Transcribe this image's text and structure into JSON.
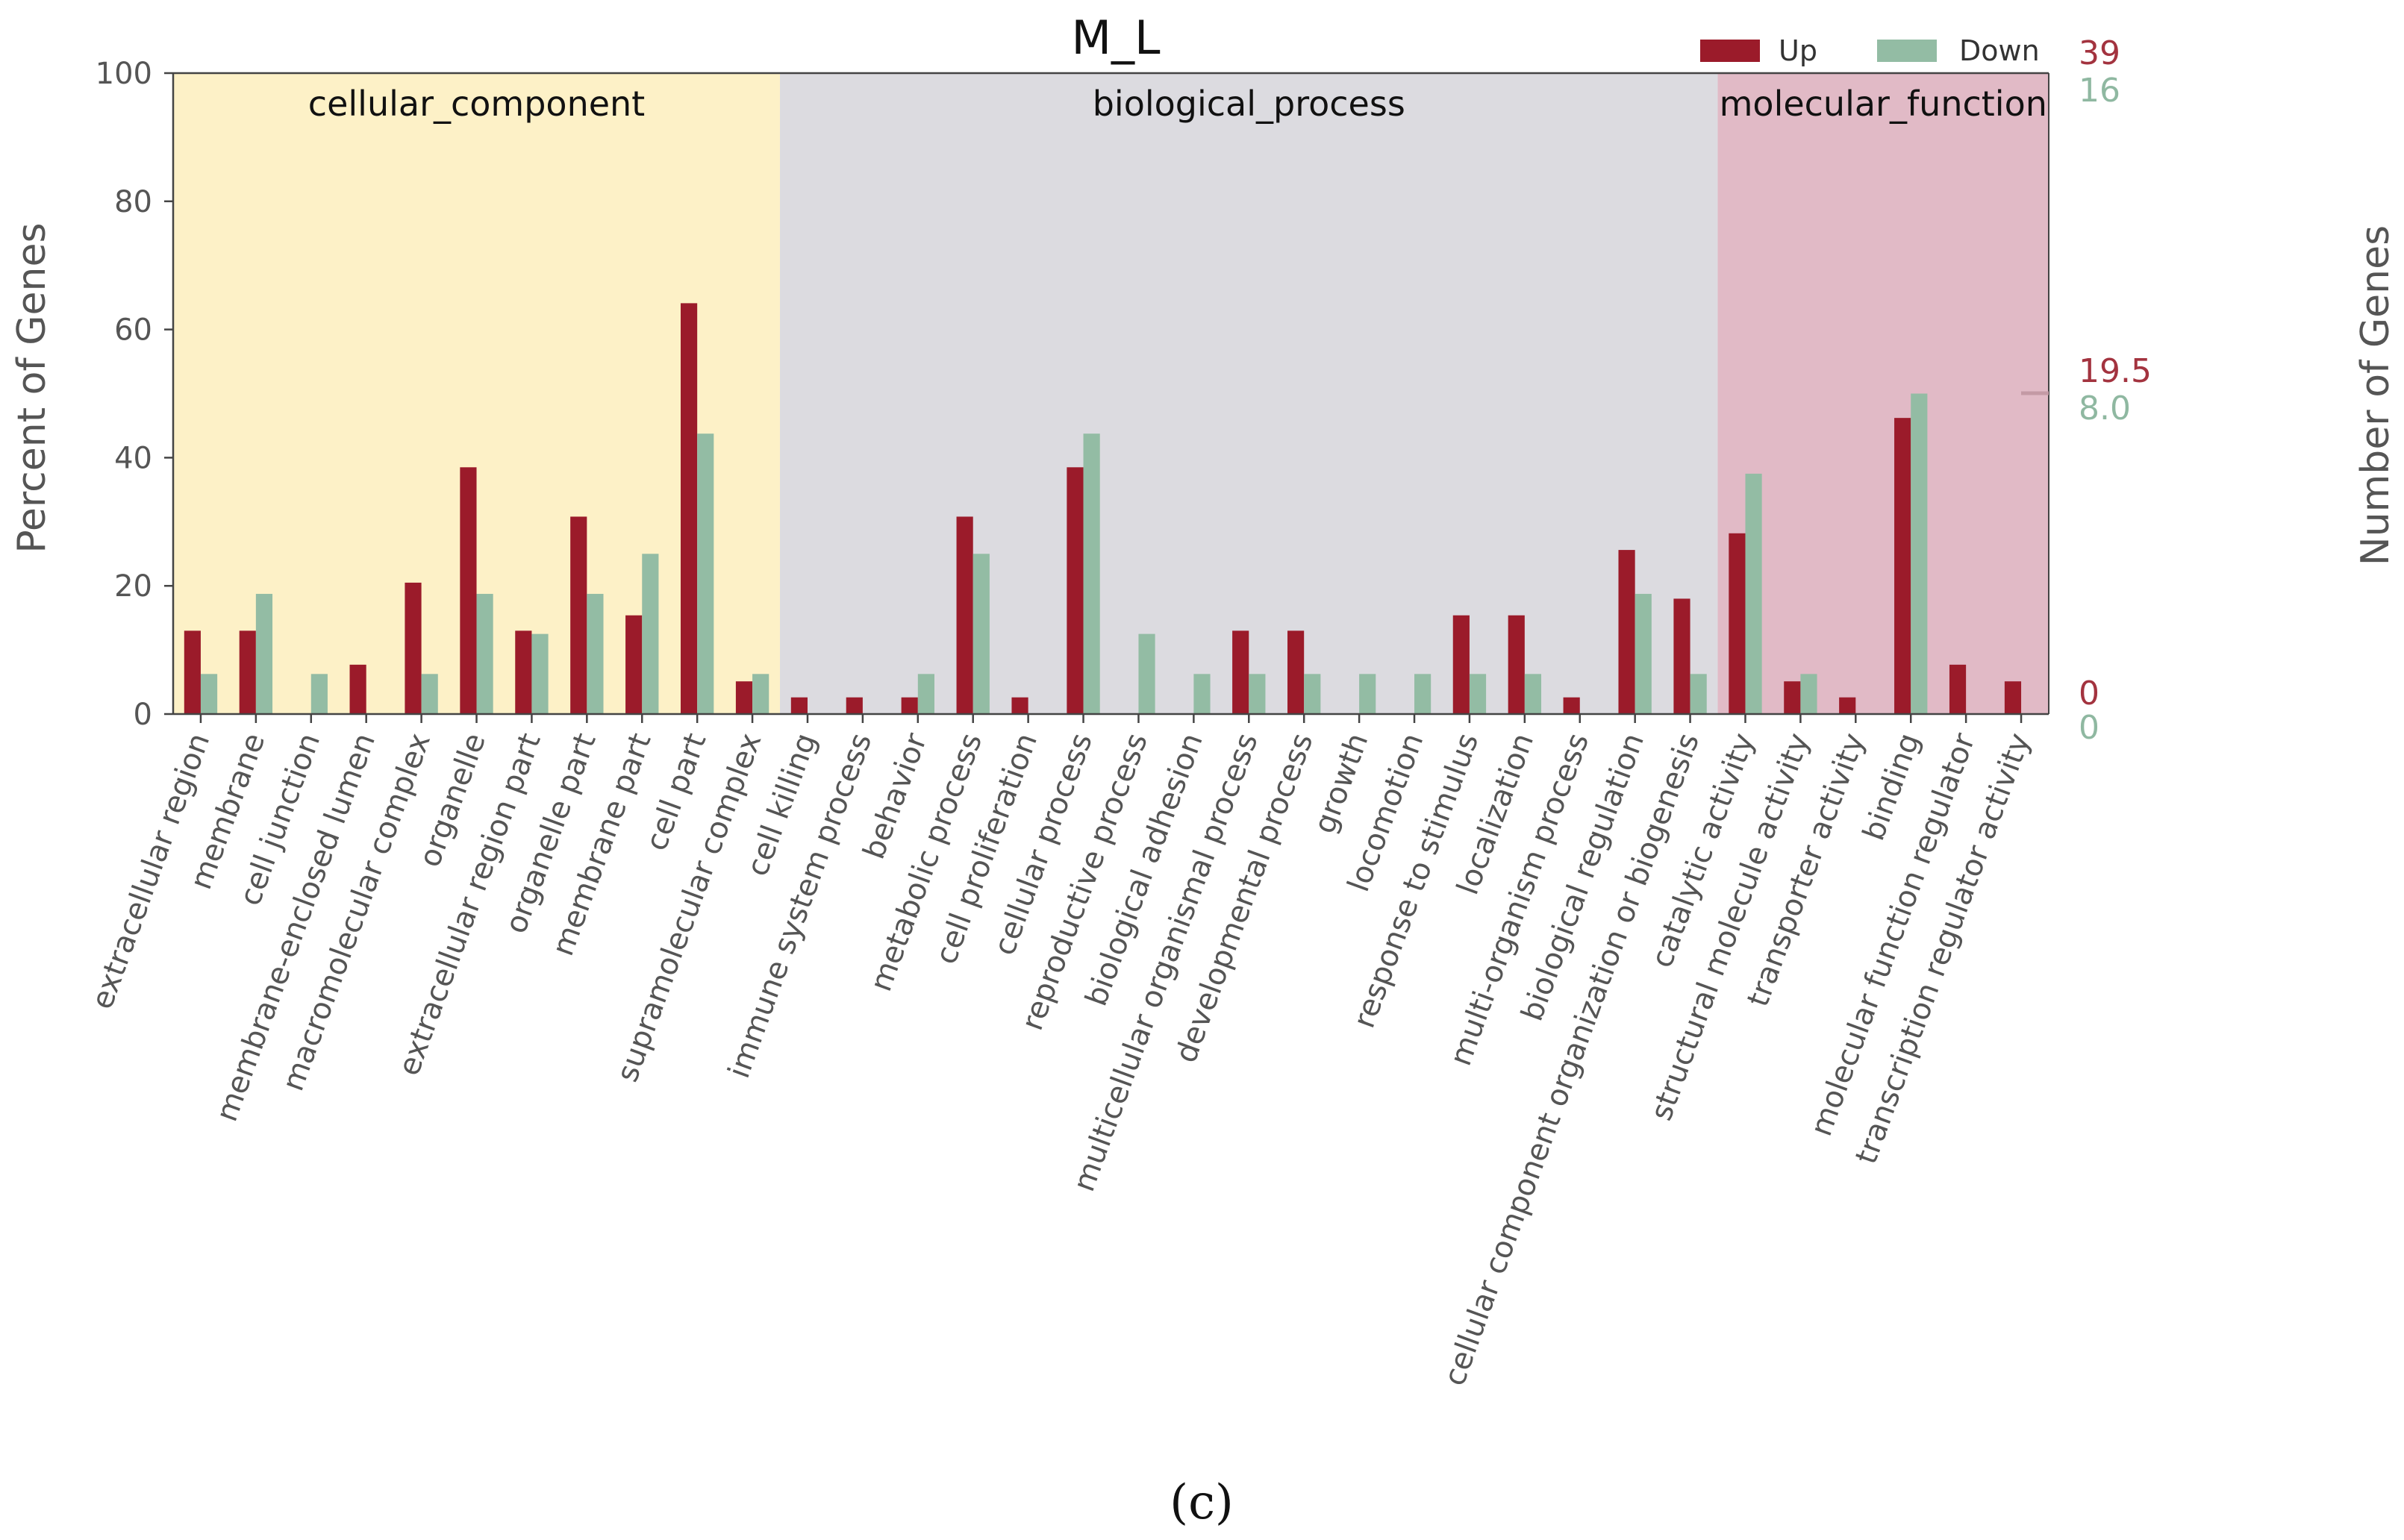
{
  "caption": "(c)",
  "chart_data": {
    "type": "bar",
    "title": "M_L",
    "ylabel": "Percent of Genes",
    "y2label": "Number of Genes",
    "ylim": [
      0,
      100
    ],
    "yticks": [
      0,
      20,
      40,
      60,
      80,
      100
    ],
    "up_counts_ticks": [
      "39",
      "19.5",
      "0"
    ],
    "down_counts_ticks": [
      "16",
      "8.0",
      "0"
    ],
    "legend_position": "top-right",
    "colors": {
      "up": "#9b1b2a",
      "down": "#93bca4",
      "cc_bg": "#fdf1c7",
      "bp_bg": "#dcdbe0",
      "mf_bg": "#e1bac6",
      "up_text": "#a3333f",
      "down_text": "#8fb8a1"
    },
    "groups": [
      {
        "name": "cellular_component",
        "start": 0,
        "end": 10
      },
      {
        "name": "biological_process",
        "start": 11,
        "end": 27
      },
      {
        "name": "molecular_function",
        "start": 28,
        "end": 33
      }
    ],
    "categories": [
      "extracellular region",
      "membrane",
      "cell junction",
      "membrane-enclosed lumen",
      "macromolecular complex",
      "organelle",
      "extracellular region part",
      "organelle part",
      "membrane part",
      "cell part",
      "supramolecular complex",
      "cell killing",
      "immune system process",
      "behavior",
      "metabolic process",
      "cell proliferation",
      "cellular process",
      "reproductive process",
      "biological adhesion",
      "multicellular organismal process",
      "developmental process",
      "growth",
      "locomotion",
      "response to stimulus",
      "localization",
      "multi-organism process",
      "biological regulation",
      "cellular component organization or biogenesis",
      "catalytic activity",
      "structural molecule activity",
      "transporter activity",
      "binding",
      "molecular function regulator",
      "transcription regulator activity"
    ],
    "series": [
      {
        "name": "Up",
        "values": [
          13,
          13,
          0,
          7.7,
          20.5,
          38.5,
          13,
          30.8,
          15.4,
          64.1,
          5.1,
          2.6,
          2.6,
          2.6,
          30.8,
          2.6,
          38.5,
          0,
          0,
          13,
          13,
          0,
          0,
          15.4,
          15.4,
          2.6,
          25.6,
          18,
          28.2,
          5.1,
          2.6,
          46.2,
          7.7,
          5.1
        ]
      },
      {
        "name": "Down",
        "values": [
          6.25,
          18.75,
          6.25,
          0,
          6.25,
          18.75,
          12.5,
          18.75,
          25,
          43.75,
          6.25,
          0,
          0,
          6.25,
          25,
          0,
          43.75,
          12.5,
          6.25,
          6.25,
          6.25,
          6.25,
          6.25,
          6.25,
          6.25,
          0,
          18.75,
          6.25,
          37.5,
          6.25,
          0,
          50,
          0,
          0
        ]
      }
    ]
  }
}
